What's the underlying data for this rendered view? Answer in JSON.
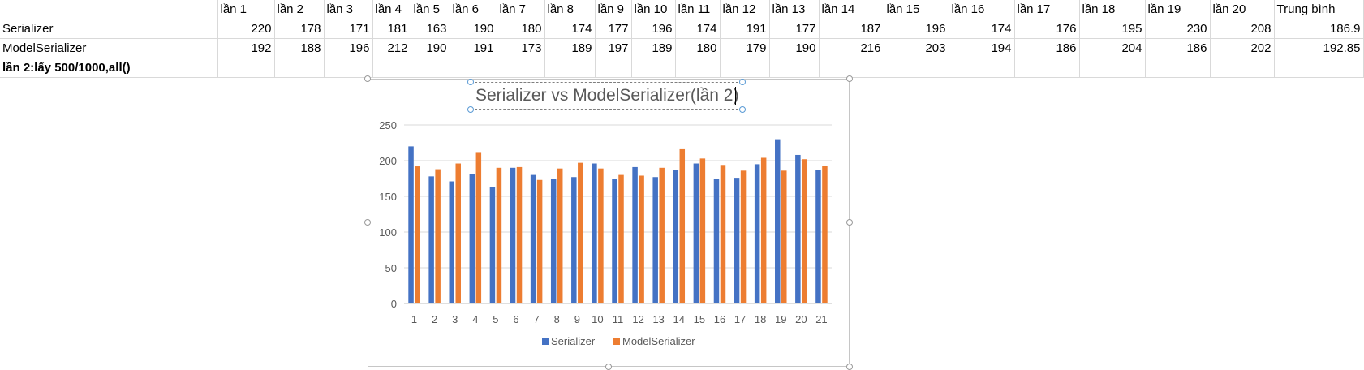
{
  "sheet": {
    "header_row": [
      "",
      "lần 1",
      "lần 2",
      "lần 3",
      "lần 4",
      "lần 5",
      "lần 6",
      "lần 7",
      "lần 8",
      "lần 9",
      "lần 10",
      "lần 11",
      "lần 12",
      "lần 13",
      "lần 14",
      "lần 15",
      "lần 16",
      "lần 17",
      "lần 18",
      "lần 19",
      "lần 20",
      "Trung  bình"
    ],
    "rows": [
      {
        "label": "Serializer",
        "cells": [
          "220",
          "178",
          "171",
          "181",
          "163",
          "190",
          "180",
          "174",
          "177",
          "196",
          "174",
          "191",
          "177",
          "187",
          "196",
          "174",
          "176",
          "195",
          "230",
          "208",
          "186.9"
        ]
      },
      {
        "label": "ModelSerializer",
        "cells": [
          "192",
          "188",
          "196",
          "212",
          "190",
          "191",
          "173",
          "189",
          "197",
          "189",
          "180",
          "179",
          "190",
          "216",
          "203",
          "194",
          "186",
          "204",
          "186",
          "202",
          "192.85"
        ]
      }
    ],
    "note_row_label": "lần 2:lấy 500/1000,all()"
  },
  "chart_data": {
    "type": "bar",
    "title": "Serializer vs ModelSerializer(lần 2)",
    "categories": [
      "1",
      "2",
      "3",
      "4",
      "5",
      "6",
      "7",
      "8",
      "9",
      "10",
      "11",
      "12",
      "13",
      "14",
      "15",
      "16",
      "17",
      "18",
      "19",
      "20",
      "21"
    ],
    "series": [
      {
        "name": "Serializer",
        "color": "#4472c4",
        "values": [
          220,
          178,
          171,
          181,
          163,
          190,
          180,
          174,
          177,
          196,
          174,
          191,
          177,
          187,
          196,
          174,
          176,
          195,
          230,
          208,
          186.9
        ]
      },
      {
        "name": "ModelSerializer",
        "color": "#ed7d31",
        "values": [
          192,
          188,
          196,
          212,
          190,
          191,
          173,
          189,
          197,
          189,
          180,
          179,
          190,
          216,
          203,
          194,
          186,
          204,
          186,
          202,
          192.85
        ]
      }
    ],
    "yticks": [
      0,
      50,
      100,
      150,
      200,
      250
    ],
    "ylim": [
      0,
      250
    ],
    "grid": true,
    "legend_position": "bottom"
  }
}
